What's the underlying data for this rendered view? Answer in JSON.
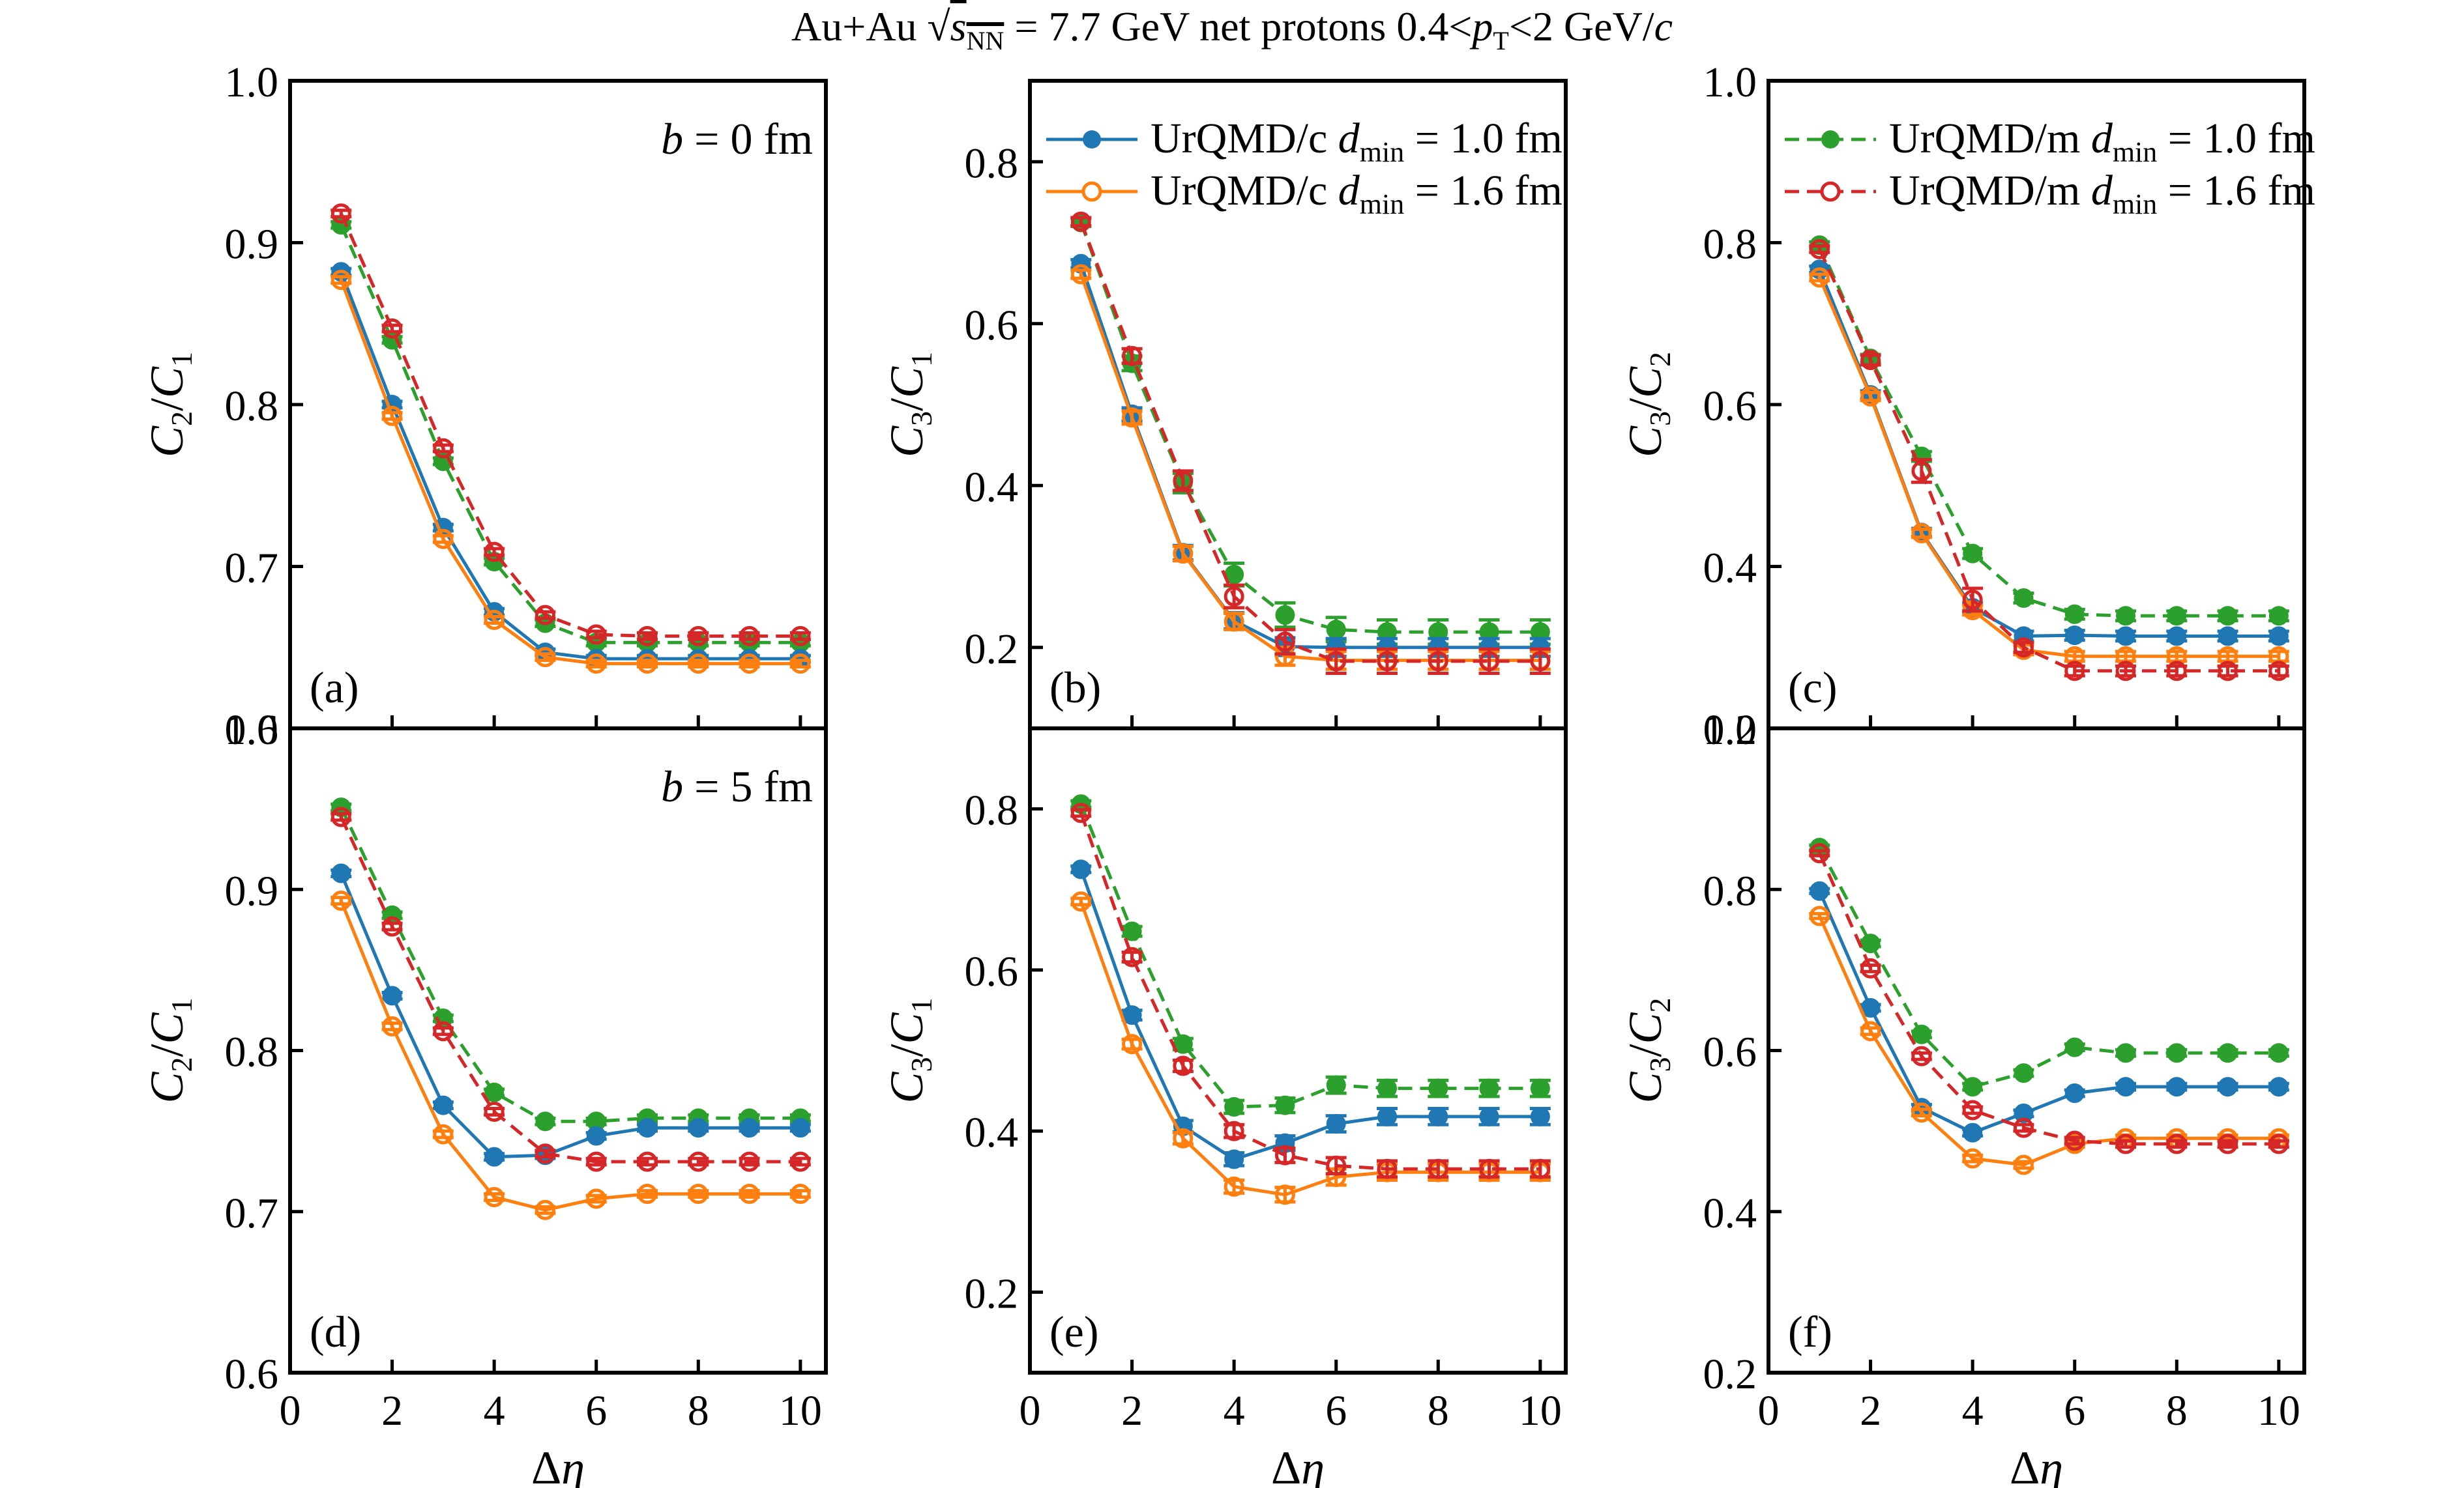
{
  "figure": {
    "title_parts": {
      "prefix": "Au+Au ",
      "sqrt_symbol": "√",
      "s": "s",
      "s_sub": "NN",
      "middle": " = 7.7 GeV net protons 0.4<",
      "pt": "p",
      "pt_sub": "T",
      "suffix": "<2 GeV/",
      "c": "c"
    },
    "colors": {
      "urqmd_c_1_0": "#1f77b4",
      "urqmd_c_1_6": "#ff7f0e",
      "urqmd_m_1_0": "#2ca02c",
      "urqmd_m_1_6": "#d62728"
    }
  },
  "chart_data": [
    {
      "type": "line",
      "panel": "(a)",
      "annotation": "b = 0 fm",
      "ylabel": "C2/C1",
      "xlabel": "",
      "xlim": [
        0,
        10.5
      ],
      "ylim": [
        0.6,
        1.0
      ],
      "yticks": [
        0.6,
        0.7,
        0.8,
        0.9,
        1.0
      ],
      "ytick_labels": [
        "0.6",
        "0.7",
        "0.8",
        "0.9",
        "1.0"
      ],
      "xticks": [
        0,
        2,
        4,
        6,
        8,
        10
      ],
      "xtick_labels": [],
      "x": [
        1,
        2,
        3,
        4,
        5,
        6,
        7,
        8,
        9,
        10
      ],
      "series": [
        {
          "name": "UrQMD/c dmin = 1.0 fm",
          "key": "urqmd_c_1_0",
          "values": [
            0.882,
            0.8,
            0.724,
            0.672,
            0.647,
            0.643,
            0.643,
            0.643,
            0.643,
            0.643
          ],
          "errors": [
            0.002,
            0.002,
            0.002,
            0.002,
            0.002,
            0.002,
            0.002,
            0.002,
            0.002,
            0.002
          ]
        },
        {
          "name": "UrQMD/c dmin = 1.6 fm",
          "key": "urqmd_c_1_6",
          "values": [
            0.877,
            0.793,
            0.717,
            0.667,
            0.644,
            0.64,
            0.64,
            0.64,
            0.64,
            0.64
          ],
          "errors": [
            0.002,
            0.002,
            0.002,
            0.002,
            0.002,
            0.002,
            0.002,
            0.002,
            0.002,
            0.002
          ]
        },
        {
          "name": "UrQMD/m dmin = 1.0 fm",
          "key": "urqmd_m_1_0",
          "values": [
            0.911,
            0.84,
            0.765,
            0.703,
            0.665,
            0.653,
            0.653,
            0.653,
            0.653,
            0.653
          ],
          "errors": [
            0.002,
            0.002,
            0.002,
            0.002,
            0.002,
            0.002,
            0.002,
            0.002,
            0.002,
            0.002
          ]
        },
        {
          "name": "UrQMD/m dmin = 1.6 fm",
          "key": "urqmd_m_1_6",
          "values": [
            0.918,
            0.847,
            0.773,
            0.709,
            0.67,
            0.658,
            0.657,
            0.657,
            0.657,
            0.657
          ],
          "errors": [
            0.002,
            0.002,
            0.002,
            0.002,
            0.002,
            0.002,
            0.002,
            0.002,
            0.002,
            0.002
          ]
        }
      ]
    },
    {
      "type": "line",
      "panel": "(b)",
      "annotation": "",
      "ylabel": "C3/C1",
      "xlabel": "",
      "xlim": [
        0,
        10.5
      ],
      "ylim": [
        0.1,
        0.9
      ],
      "yticks": [
        0.2,
        0.4,
        0.6,
        0.8
      ],
      "ytick_labels": [
        "0.2",
        "0.4",
        "0.6",
        "0.8"
      ],
      "xticks": [
        0,
        2,
        4,
        6,
        8,
        10
      ],
      "xtick_labels": [],
      "legend": {
        "placement": "top-right",
        "entries": [
          "UrQMD/c dmin = 1.0 fm",
          "UrQMD/c dmin = 1.6 fm"
        ]
      },
      "x": [
        1,
        2,
        3,
        4,
        5,
        6,
        7,
        8,
        9,
        10
      ],
      "series": [
        {
          "name": "UrQMD/c dmin = 1.0 fm",
          "key": "urqmd_c_1_0",
          "values": [
            0.674,
            0.488,
            0.317,
            0.233,
            0.201,
            0.2,
            0.2,
            0.2,
            0.2,
            0.2
          ],
          "errors": [
            0.005,
            0.008,
            0.009,
            0.01,
            0.011,
            0.011,
            0.011,
            0.011,
            0.011,
            0.011
          ]
        },
        {
          "name": "UrQMD/c dmin = 1.6 fm",
          "key": "urqmd_c_1_6",
          "values": [
            0.661,
            0.484,
            0.316,
            0.232,
            0.189,
            0.184,
            0.184,
            0.184,
            0.184,
            0.184
          ],
          "errors": [
            0.005,
            0.008,
            0.009,
            0.01,
            0.011,
            0.011,
            0.011,
            0.011,
            0.011,
            0.011
          ]
        },
        {
          "name": "UrQMD/m dmin = 1.0 fm",
          "key": "urqmd_m_1_0",
          "values": [
            0.725,
            0.551,
            0.403,
            0.29,
            0.24,
            0.222,
            0.219,
            0.219,
            0.219,
            0.219
          ],
          "errors": [
            0.005,
            0.009,
            0.012,
            0.014,
            0.015,
            0.015,
            0.015,
            0.015,
            0.015,
            0.015
          ]
        },
        {
          "name": "UrQMD/m dmin = 1.6 fm",
          "key": "urqmd_m_1_6",
          "values": [
            0.726,
            0.56,
            0.406,
            0.263,
            0.207,
            0.183,
            0.183,
            0.183,
            0.183,
            0.183
          ],
          "errors": [
            0.005,
            0.009,
            0.012,
            0.014,
            0.015,
            0.015,
            0.015,
            0.015,
            0.015,
            0.015
          ]
        }
      ]
    },
    {
      "type": "line",
      "panel": "(c)",
      "annotation": "",
      "ylabel": "C3/C2",
      "xlabel": "",
      "xlim": [
        0,
        10.5
      ],
      "ylim": [
        0.2,
        1.0
      ],
      "yticks": [
        0.2,
        0.4,
        0.6,
        0.8,
        1.0
      ],
      "ytick_labels": [
        "0.2",
        "0.4",
        "0.6",
        "0.8",
        "1.0"
      ],
      "xticks": [
        0,
        2,
        4,
        6,
        8,
        10
      ],
      "xtick_labels": [],
      "legend": {
        "placement": "top-right",
        "entries": [
          "UrQMD/m dmin = 1.0 fm",
          "UrQMD/m dmin = 1.6 fm"
        ]
      },
      "x": [
        1,
        2,
        3,
        4,
        5,
        6,
        7,
        8,
        9,
        10
      ],
      "series": [
        {
          "name": "UrQMD/c dmin = 1.0 fm",
          "key": "urqmd_c_1_0",
          "values": [
            0.767,
            0.612,
            0.442,
            0.349,
            0.314,
            0.315,
            0.314,
            0.314,
            0.314,
            0.314
          ],
          "errors": [
            0.004,
            0.005,
            0.005,
            0.006,
            0.006,
            0.006,
            0.006,
            0.006,
            0.006,
            0.006
          ]
        },
        {
          "name": "UrQMD/c dmin = 1.6 fm",
          "key": "urqmd_c_1_6",
          "values": [
            0.757,
            0.61,
            0.441,
            0.346,
            0.297,
            0.289,
            0.289,
            0.289,
            0.289,
            0.289
          ],
          "errors": [
            0.004,
            0.005,
            0.005,
            0.006,
            0.006,
            0.006,
            0.006,
            0.006,
            0.006,
            0.006
          ]
        },
        {
          "name": "UrQMD/m dmin = 1.0 fm",
          "key": "urqmd_m_1_0",
          "values": [
            0.797,
            0.657,
            0.536,
            0.416,
            0.361,
            0.341,
            0.339,
            0.339,
            0.339,
            0.339
          ],
          "errors": [
            0.004,
            0.005,
            0.006,
            0.006,
            0.006,
            0.006,
            0.006,
            0.006,
            0.006,
            0.006
          ]
        },
        {
          "name": "UrQMD/m dmin = 1.6 fm",
          "key": "urqmd_m_1_6",
          "values": [
            0.792,
            0.655,
            0.518,
            0.359,
            0.3,
            0.271,
            0.271,
            0.271,
            0.271,
            0.271
          ],
          "errors": [
            0.004,
            0.006,
            0.014,
            0.014,
            0.006,
            0.006,
            0.006,
            0.006,
            0.006,
            0.006
          ]
        }
      ]
    },
    {
      "type": "line",
      "panel": "(d)",
      "annotation": "b = 5 fm",
      "ylabel": "C2/C1",
      "xlabel": "Δη",
      "xlim": [
        0,
        10.5
      ],
      "ylim": [
        0.6,
        1.0
      ],
      "yticks": [
        0.6,
        0.7,
        0.8,
        0.9,
        1.0
      ],
      "ytick_labels": [
        "0.6",
        "0.7",
        "0.8",
        "0.9",
        "1.0"
      ],
      "xticks": [
        0,
        2,
        4,
        6,
        8,
        10
      ],
      "xtick_labels": [
        "0",
        "2",
        "4",
        "6",
        "8",
        "10"
      ],
      "x": [
        1,
        2,
        3,
        4,
        5,
        6,
        7,
        8,
        9,
        10
      ],
      "series": [
        {
          "name": "UrQMD/c dmin = 1.0 fm",
          "key": "urqmd_c_1_0",
          "values": [
            0.91,
            0.834,
            0.766,
            0.734,
            0.735,
            0.747,
            0.752,
            0.752,
            0.752,
            0.752
          ],
          "errors": [
            0.002,
            0.002,
            0.002,
            0.002,
            0.002,
            0.002,
            0.002,
            0.002,
            0.002,
            0.002
          ]
        },
        {
          "name": "UrQMD/c dmin = 1.6 fm",
          "key": "urqmd_c_1_6",
          "values": [
            0.893,
            0.815,
            0.748,
            0.709,
            0.701,
            0.708,
            0.711,
            0.711,
            0.711,
            0.711
          ],
          "errors": [
            0.002,
            0.002,
            0.002,
            0.002,
            0.002,
            0.002,
            0.002,
            0.002,
            0.002,
            0.002
          ]
        },
        {
          "name": "UrQMD/m dmin = 1.0 fm",
          "key": "urqmd_m_1_0",
          "values": [
            0.951,
            0.884,
            0.82,
            0.774,
            0.756,
            0.756,
            0.758,
            0.758,
            0.758,
            0.758
          ],
          "errors": [
            0.002,
            0.002,
            0.002,
            0.002,
            0.002,
            0.002,
            0.002,
            0.002,
            0.002,
            0.002
          ]
        },
        {
          "name": "UrQMD/m dmin = 1.6 fm",
          "key": "urqmd_m_1_6",
          "values": [
            0.945,
            0.877,
            0.812,
            0.762,
            0.736,
            0.731,
            0.731,
            0.731,
            0.731,
            0.731
          ],
          "errors": [
            0.002,
            0.002,
            0.002,
            0.002,
            0.002,
            0.002,
            0.002,
            0.002,
            0.002,
            0.002
          ]
        }
      ]
    },
    {
      "type": "line",
      "panel": "(e)",
      "annotation": "",
      "ylabel": "C3/C1",
      "xlabel": "Δη",
      "xlim": [
        0,
        10.5
      ],
      "ylim": [
        0.1,
        0.9
      ],
      "yticks": [
        0.2,
        0.4,
        0.6,
        0.8
      ],
      "ytick_labels": [
        "0.2",
        "0.4",
        "0.6",
        "0.8"
      ],
      "xticks": [
        0,
        2,
        4,
        6,
        8,
        10
      ],
      "xtick_labels": [
        "0",
        "2",
        "4",
        "6",
        "8",
        "10"
      ],
      "x": [
        1,
        2,
        3,
        4,
        5,
        6,
        7,
        8,
        9,
        10
      ],
      "series": [
        {
          "name": "UrQMD/c dmin = 1.0 fm",
          "key": "urqmd_c_1_0",
          "values": [
            0.725,
            0.544,
            0.406,
            0.365,
            0.385,
            0.409,
            0.418,
            0.418,
            0.418,
            0.418
          ],
          "errors": [
            0.004,
            0.006,
            0.007,
            0.008,
            0.009,
            0.01,
            0.01,
            0.01,
            0.01,
            0.01
          ]
        },
        {
          "name": "UrQMD/c dmin = 1.6 fm",
          "key": "urqmd_c_1_6",
          "values": [
            0.685,
            0.508,
            0.391,
            0.331,
            0.321,
            0.343,
            0.349,
            0.349,
            0.349,
            0.349
          ],
          "errors": [
            0.004,
            0.006,
            0.007,
            0.008,
            0.009,
            0.01,
            0.01,
            0.01,
            0.01,
            0.01
          ]
        },
        {
          "name": "UrQMD/m dmin = 1.0 fm",
          "key": "urqmd_m_1_0",
          "values": [
            0.806,
            0.648,
            0.508,
            0.43,
            0.432,
            0.457,
            0.453,
            0.453,
            0.453,
            0.453
          ],
          "errors": [
            0.004,
            0.006,
            0.007,
            0.008,
            0.009,
            0.01,
            0.01,
            0.01,
            0.01,
            0.01
          ]
        },
        {
          "name": "UrQMD/m dmin = 1.6 fm",
          "key": "urqmd_m_1_6",
          "values": [
            0.795,
            0.616,
            0.481,
            0.4,
            0.37,
            0.357,
            0.353,
            0.353,
            0.353,
            0.353
          ],
          "errors": [
            0.004,
            0.006,
            0.007,
            0.008,
            0.009,
            0.01,
            0.01,
            0.01,
            0.01,
            0.01
          ]
        }
      ]
    },
    {
      "type": "line",
      "panel": "(f)",
      "annotation": "",
      "ylabel": "C3/C2",
      "xlabel": "Δη",
      "xlim": [
        0,
        10.5
      ],
      "ylim": [
        0.2,
        1.0
      ],
      "yticks": [
        0.2,
        0.4,
        0.6,
        0.8,
        1.0
      ],
      "ytick_labels": [
        "0.2",
        "0.4",
        "0.6",
        "0.8",
        "1.0"
      ],
      "xticks": [
        0,
        2,
        4,
        6,
        8,
        10
      ],
      "xtick_labels": [
        "0",
        "2",
        "4",
        "6",
        "8",
        "10"
      ],
      "x": [
        1,
        2,
        3,
        4,
        5,
        6,
        7,
        8,
        9,
        10
      ],
      "series": [
        {
          "name": "UrQMD/c dmin = 1.0 fm",
          "key": "urqmd_c_1_0",
          "values": [
            0.798,
            0.653,
            0.529,
            0.498,
            0.522,
            0.547,
            0.555,
            0.555,
            0.555,
            0.555
          ],
          "errors": [
            0.003,
            0.004,
            0.004,
            0.004,
            0.004,
            0.004,
            0.004,
            0.004,
            0.004,
            0.004
          ]
        },
        {
          "name": "UrQMD/c dmin = 1.6 fm",
          "key": "urqmd_c_1_6",
          "values": [
            0.767,
            0.624,
            0.523,
            0.466,
            0.458,
            0.484,
            0.491,
            0.491,
            0.491,
            0.491
          ],
          "errors": [
            0.003,
            0.004,
            0.004,
            0.004,
            0.004,
            0.004,
            0.004,
            0.004,
            0.004,
            0.004
          ]
        },
        {
          "name": "UrQMD/m dmin = 1.0 fm",
          "key": "urqmd_m_1_0",
          "values": [
            0.852,
            0.733,
            0.62,
            0.555,
            0.572,
            0.604,
            0.597,
            0.597,
            0.597,
            0.597
          ],
          "errors": [
            0.003,
            0.004,
            0.004,
            0.004,
            0.004,
            0.004,
            0.004,
            0.004,
            0.004,
            0.004
          ]
        },
        {
          "name": "UrQMD/m dmin = 1.6 fm",
          "key": "urqmd_m_1_6",
          "values": [
            0.845,
            0.702,
            0.593,
            0.526,
            0.504,
            0.488,
            0.484,
            0.484,
            0.484,
            0.484
          ],
          "errors": [
            0.003,
            0.004,
            0.004,
            0.004,
            0.004,
            0.004,
            0.004,
            0.004,
            0.004,
            0.004
          ]
        }
      ]
    }
  ],
  "series_styles": {
    "urqmd_c_1_0": {
      "label_main": "UrQMD/c ",
      "label_d": "d",
      "label_sub": "min",
      "label_value": " = 1.0 fm",
      "line": "solid",
      "marker": "filled"
    },
    "urqmd_c_1_6": {
      "label_main": "UrQMD/c ",
      "label_d": "d",
      "label_sub": "min",
      "label_value": " = 1.6 fm",
      "line": "solid",
      "marker": "open"
    },
    "urqmd_m_1_0": {
      "label_main": "UrQMD/m ",
      "label_d": "d",
      "label_sub": "min",
      "label_value": " = 1.0 fm",
      "line": "dashed",
      "marker": "filled"
    },
    "urqmd_m_1_6": {
      "label_main": "UrQMD/m ",
      "label_d": "d",
      "label_sub": "min",
      "label_value": " = 1.6 fm",
      "line": "dashed",
      "marker": "open"
    }
  },
  "ylabel_parts": {
    "C2/C1": {
      "a": "C",
      "a_sub": "2",
      "b": "C",
      "b_sub": "1"
    },
    "C3/C1": {
      "a": "C",
      "a_sub": "3",
      "b": "C",
      "b_sub": "1"
    },
    "C3/C2": {
      "a": "C",
      "a_sub": "3",
      "b": "C",
      "b_sub": "2"
    }
  },
  "xlabel_parts": {
    "delta": "Δ",
    "eta": "η"
  },
  "annotation_parts": {
    "b = 0 fm": {
      "b": "b",
      "rest": " = 0 fm"
    },
    "b = 5 fm": {
      "b": "b",
      "rest": " = 5 fm"
    }
  }
}
